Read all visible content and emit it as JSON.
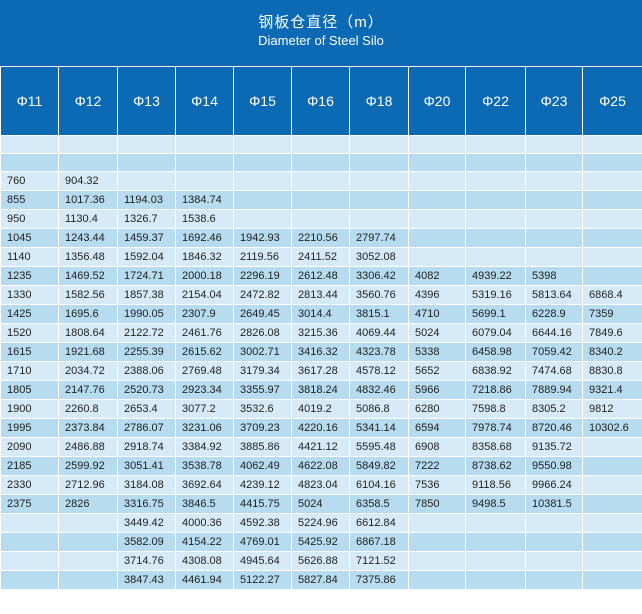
{
  "header": {
    "title_cn": "钢板仓直径（m）",
    "title_en": "Diameter of Steel Silo",
    "columns": [
      "Φ11",
      "Φ12",
      "Φ13",
      "Φ14",
      "Φ15",
      "Φ16",
      "Φ18",
      "Φ20",
      "Φ22",
      "Φ23",
      "Φ25"
    ]
  },
  "rows": [
    [
      "",
      "",
      "",
      "",
      "",
      "",
      "",
      "",
      "",
      "",
      ""
    ],
    [
      "",
      "",
      "",
      "",
      "",
      "",
      "",
      "",
      "",
      "",
      ""
    ],
    [
      "760",
      "904.32",
      "",
      "",
      "",
      "",
      "",
      "",
      "",
      "",
      ""
    ],
    [
      "855",
      "1017.36",
      "1194.03",
      "1384.74",
      "",
      "",
      "",
      "",
      "",
      "",
      ""
    ],
    [
      "950",
      "1130.4",
      "1326.7",
      "1538.6",
      "",
      "",
      "",
      "",
      "",
      "",
      ""
    ],
    [
      "1045",
      "1243.44",
      "1459.37",
      "1692.46",
      "1942.93",
      "2210.56",
      "2797.74",
      "",
      "",
      "",
      ""
    ],
    [
      "1140",
      "1356.48",
      "1592.04",
      "1846.32",
      "2119.56",
      "2411.52",
      "3052.08",
      "",
      "",
      "",
      ""
    ],
    [
      "1235",
      "1469.52",
      "1724.71",
      "2000.18",
      "2296.19",
      "2612.48",
      "3306.42",
      "4082",
      "4939.22",
      "5398",
      ""
    ],
    [
      "1330",
      "1582.56",
      "1857.38",
      "2154.04",
      "2472.82",
      "2813.44",
      "3560.76",
      "4396",
      "5319.16",
      "5813.64",
      "6868.4"
    ],
    [
      "1425",
      "1695.6",
      "1990.05",
      "2307.9",
      "2649.45",
      "3014.4",
      "3815.1",
      "4710",
      "5699.1",
      "6228.9",
      "7359"
    ],
    [
      "1520",
      "1808.64",
      "2122.72",
      "2461.76",
      "2826.08",
      "3215.36",
      "4069.44",
      "5024",
      "6079.04",
      "6644.16",
      "7849.6"
    ],
    [
      "1615",
      "1921.68",
      "2255.39",
      "2615.62",
      "3002.71",
      "3416.32",
      "4323.78",
      "5338",
      "6458.98",
      "7059.42",
      "8340.2"
    ],
    [
      "1710",
      "2034.72",
      "2388.06",
      "2769.48",
      "3179.34",
      "3617.28",
      "4578.12",
      "5652",
      "6838.92",
      "7474.68",
      "8830.8"
    ],
    [
      "1805",
      "2147.76",
      "2520.73",
      "2923.34",
      "3355.97",
      "3818.24",
      "4832.46",
      "5966",
      "7218.86",
      "7889.94",
      "9321.4"
    ],
    [
      "1900",
      "2260.8",
      "2653.4",
      "3077.2",
      "3532.6",
      "4019.2",
      "5086.8",
      "6280",
      "7598.8",
      "8305.2",
      "9812"
    ],
    [
      "1995",
      "2373.84",
      "2786.07",
      "3231.06",
      "3709.23",
      "4220.16",
      "5341.14",
      "6594",
      "7978.74",
      "8720.46",
      "10302.6"
    ],
    [
      "2090",
      "2486.88",
      "2918.74",
      "3384.92",
      "3885.86",
      "4421.12",
      "5595.48",
      "6908",
      "8358.68",
      "9135.72",
      ""
    ],
    [
      "2185",
      "2599.92",
      "3051.41",
      "3538.78",
      "4062.49",
      "4622.08",
      "5849.82",
      "7222",
      "8738.62",
      "9550.98",
      ""
    ],
    [
      "2330",
      "2712.96",
      "3184.08",
      "3692.64",
      "4239.12",
      "4823.04",
      "6104.16",
      "7536",
      "9118.56",
      "9966.24",
      ""
    ],
    [
      "2375",
      "2826",
      "3316.75",
      "3846.5",
      "4415.75",
      "5024",
      "6358.5",
      "7850",
      "9498.5",
      "10381.5",
      ""
    ],
    [
      "",
      "",
      "3449.42",
      "4000.36",
      "4592.38",
      "5224.96",
      "6612.84",
      "",
      "",
      "",
      ""
    ],
    [
      "",
      "",
      "3582.09",
      "4154.22",
      "4769.01",
      "5425.92",
      "6867.18",
      "",
      "",
      "",
      ""
    ],
    [
      "",
      "",
      "3714.76",
      "4308.08",
      "4945.64",
      "5626.88",
      "7121.52",
      "",
      "",
      "",
      ""
    ],
    [
      "",
      "",
      "3847.43",
      "4461.94",
      "5122.27",
      "5827.84",
      "7375.86",
      "",
      "",
      "",
      ""
    ]
  ]
}
